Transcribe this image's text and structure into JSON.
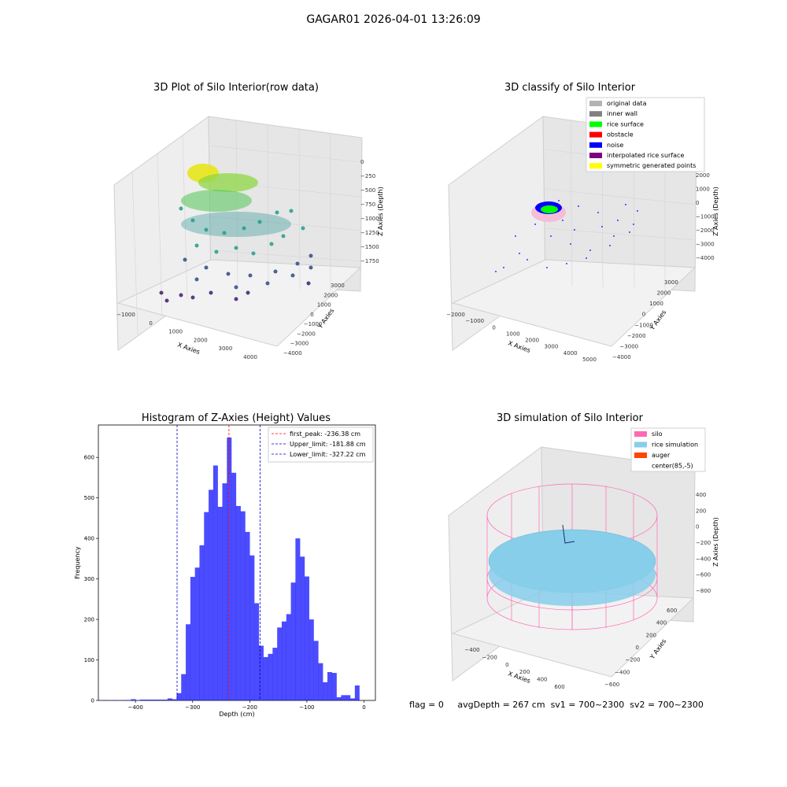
{
  "figure": {
    "suptitle": "GAGAR01 2026-04-01 13:26:09",
    "status": {
      "flag": "flag = 0",
      "avg_depth": "avgDepth = 267 cm",
      "sv1": "sv1 = 700~2300",
      "sv2": "sv2 = 700~2300"
    }
  },
  "chart_data": [
    {
      "type": "scatter",
      "title": "3D Plot of Silo Interior(row data)",
      "xlabel": "X Axies",
      "ylabel": "Y Axies",
      "zlabel": "Z Axies (Depth)",
      "x_ticks": [
        "-1000",
        "0",
        "1000",
        "2000",
        "3000",
        "4000"
      ],
      "y_ticks": [
        "-4000",
        "-3000",
        "-2000",
        "-1000",
        "0",
        "1000",
        "2000",
        "3000"
      ],
      "z_ticks": [
        "0",
        "-250",
        "-500",
        "-750",
        "-1000",
        "-1250",
        "-1500",
        "-1750"
      ],
      "colormap": "viridis (depth-colored point cloud)"
    },
    {
      "type": "scatter",
      "title": "3D classify of Silo Interior",
      "xlabel": "X Axies",
      "ylabel": "Y Axies",
      "zlabel": "Z Axies (Depth)",
      "x_ticks": [
        "-2000",
        "-1000",
        "0",
        "1000",
        "2000",
        "3000",
        "4000",
        "5000"
      ],
      "y_ticks": [
        "-4000",
        "-3000",
        "-2000",
        "-1000",
        "0",
        "1000",
        "2000",
        "3000"
      ],
      "z_ticks": [
        "2000",
        "1000",
        "0",
        "-1000",
        "-2000",
        "-3000",
        "-4000"
      ],
      "legend": [
        {
          "label": "original data",
          "color": "#b3b3b3"
        },
        {
          "label": "inner wall",
          "color": "#808080"
        },
        {
          "label": "rice surface",
          "color": "#00ff00"
        },
        {
          "label": "obstacle",
          "color": "#ff0000"
        },
        {
          "label": "noise",
          "color": "#0000ff"
        },
        {
          "label": "interpolated rice surface",
          "color": "#800080"
        },
        {
          "label": "symmetric generated points",
          "color": "#ffff00"
        }
      ],
      "legend_position": "top-right"
    },
    {
      "type": "bar",
      "title": "Histogram of Z-Axies (Height) Values",
      "xlabel": "Depth (cm)",
      "ylabel": "Frequency",
      "xlim": [
        -465,
        20
      ],
      "ylim": [
        0,
        680
      ],
      "x_ticks": [
        -400,
        -300,
        -200,
        -100,
        0
      ],
      "y_ticks": [
        0,
        100,
        200,
        300,
        400,
        500,
        600
      ],
      "bin_width": 8,
      "bins": [
        [
          -456,
          1
        ],
        [
          -448,
          0
        ],
        [
          -440,
          1
        ],
        [
          -432,
          0
        ],
        [
          -424,
          1
        ],
        [
          -416,
          1
        ],
        [
          -408,
          3
        ],
        [
          -400,
          1
        ],
        [
          -392,
          2
        ],
        [
          -384,
          2
        ],
        [
          -376,
          2
        ],
        [
          -368,
          2
        ],
        [
          -360,
          2
        ],
        [
          -352,
          2
        ],
        [
          -344,
          5
        ],
        [
          -336,
          3
        ],
        [
          -328,
          18
        ],
        [
          -320,
          65
        ],
        [
          -312,
          188
        ],
        [
          -304,
          305
        ],
        [
          -296,
          328
        ],
        [
          -288,
          383
        ],
        [
          -280,
          465
        ],
        [
          -272,
          520
        ],
        [
          -264,
          580
        ],
        [
          -256,
          478
        ],
        [
          -248,
          536
        ],
        [
          -240,
          649
        ],
        [
          -232,
          562
        ],
        [
          -224,
          480
        ],
        [
          -216,
          467
        ],
        [
          -208,
          416
        ],
        [
          -200,
          358
        ],
        [
          -192,
          240
        ],
        [
          -184,
          135
        ],
        [
          -176,
          107
        ],
        [
          -168,
          115
        ],
        [
          -160,
          130
        ],
        [
          -152,
          180
        ],
        [
          -144,
          195
        ],
        [
          -136,
          213
        ],
        [
          -128,
          291
        ],
        [
          -120,
          400
        ],
        [
          -112,
          355
        ],
        [
          -104,
          306
        ],
        [
          -96,
          200
        ],
        [
          -88,
          147
        ],
        [
          -80,
          92
        ],
        [
          -72,
          45
        ],
        [
          -64,
          70
        ],
        [
          -56,
          68
        ],
        [
          -48,
          8
        ],
        [
          -40,
          13
        ],
        [
          -32,
          13
        ],
        [
          -24,
          5
        ],
        [
          -16,
          37
        ]
      ],
      "bar_color": "#0000ff",
      "vlines": [
        {
          "label": "first_peak: -236.38 cm",
          "x": -236.38,
          "color": "#ff0000"
        },
        {
          "label": "Upper_limit: -181.88 cm",
          "x": -181.88,
          "color": "#0000cc"
        },
        {
          "label": "Lower_limit: -327.22 cm",
          "x": -327.22,
          "color": "#0000cc"
        }
      ],
      "legend_position": "top-right"
    },
    {
      "type": "scatter",
      "title": "3D simulation of Silo Interior",
      "xlabel": "X Axies",
      "ylabel": "Y Axies",
      "zlabel": "Z Axies (Depth)",
      "x_ticks": [
        "-400",
        "-200",
        "0",
        "200",
        "400",
        "600"
      ],
      "y_ticks": [
        "-600",
        "-400",
        "-200",
        "0",
        "200",
        "400",
        "600"
      ],
      "z_ticks": [
        "400",
        "200",
        "0",
        "-200",
        "-400",
        "-600",
        "-800"
      ],
      "legend": [
        {
          "label": "silo",
          "color": "#ff69b4"
        },
        {
          "label": "rice simulation",
          "color": "#87ceeb"
        },
        {
          "label": "auger",
          "color": "#ff4500"
        },
        {
          "label": "center(85,-5)",
          "color": ""
        }
      ],
      "legend_position": "top-right"
    }
  ]
}
